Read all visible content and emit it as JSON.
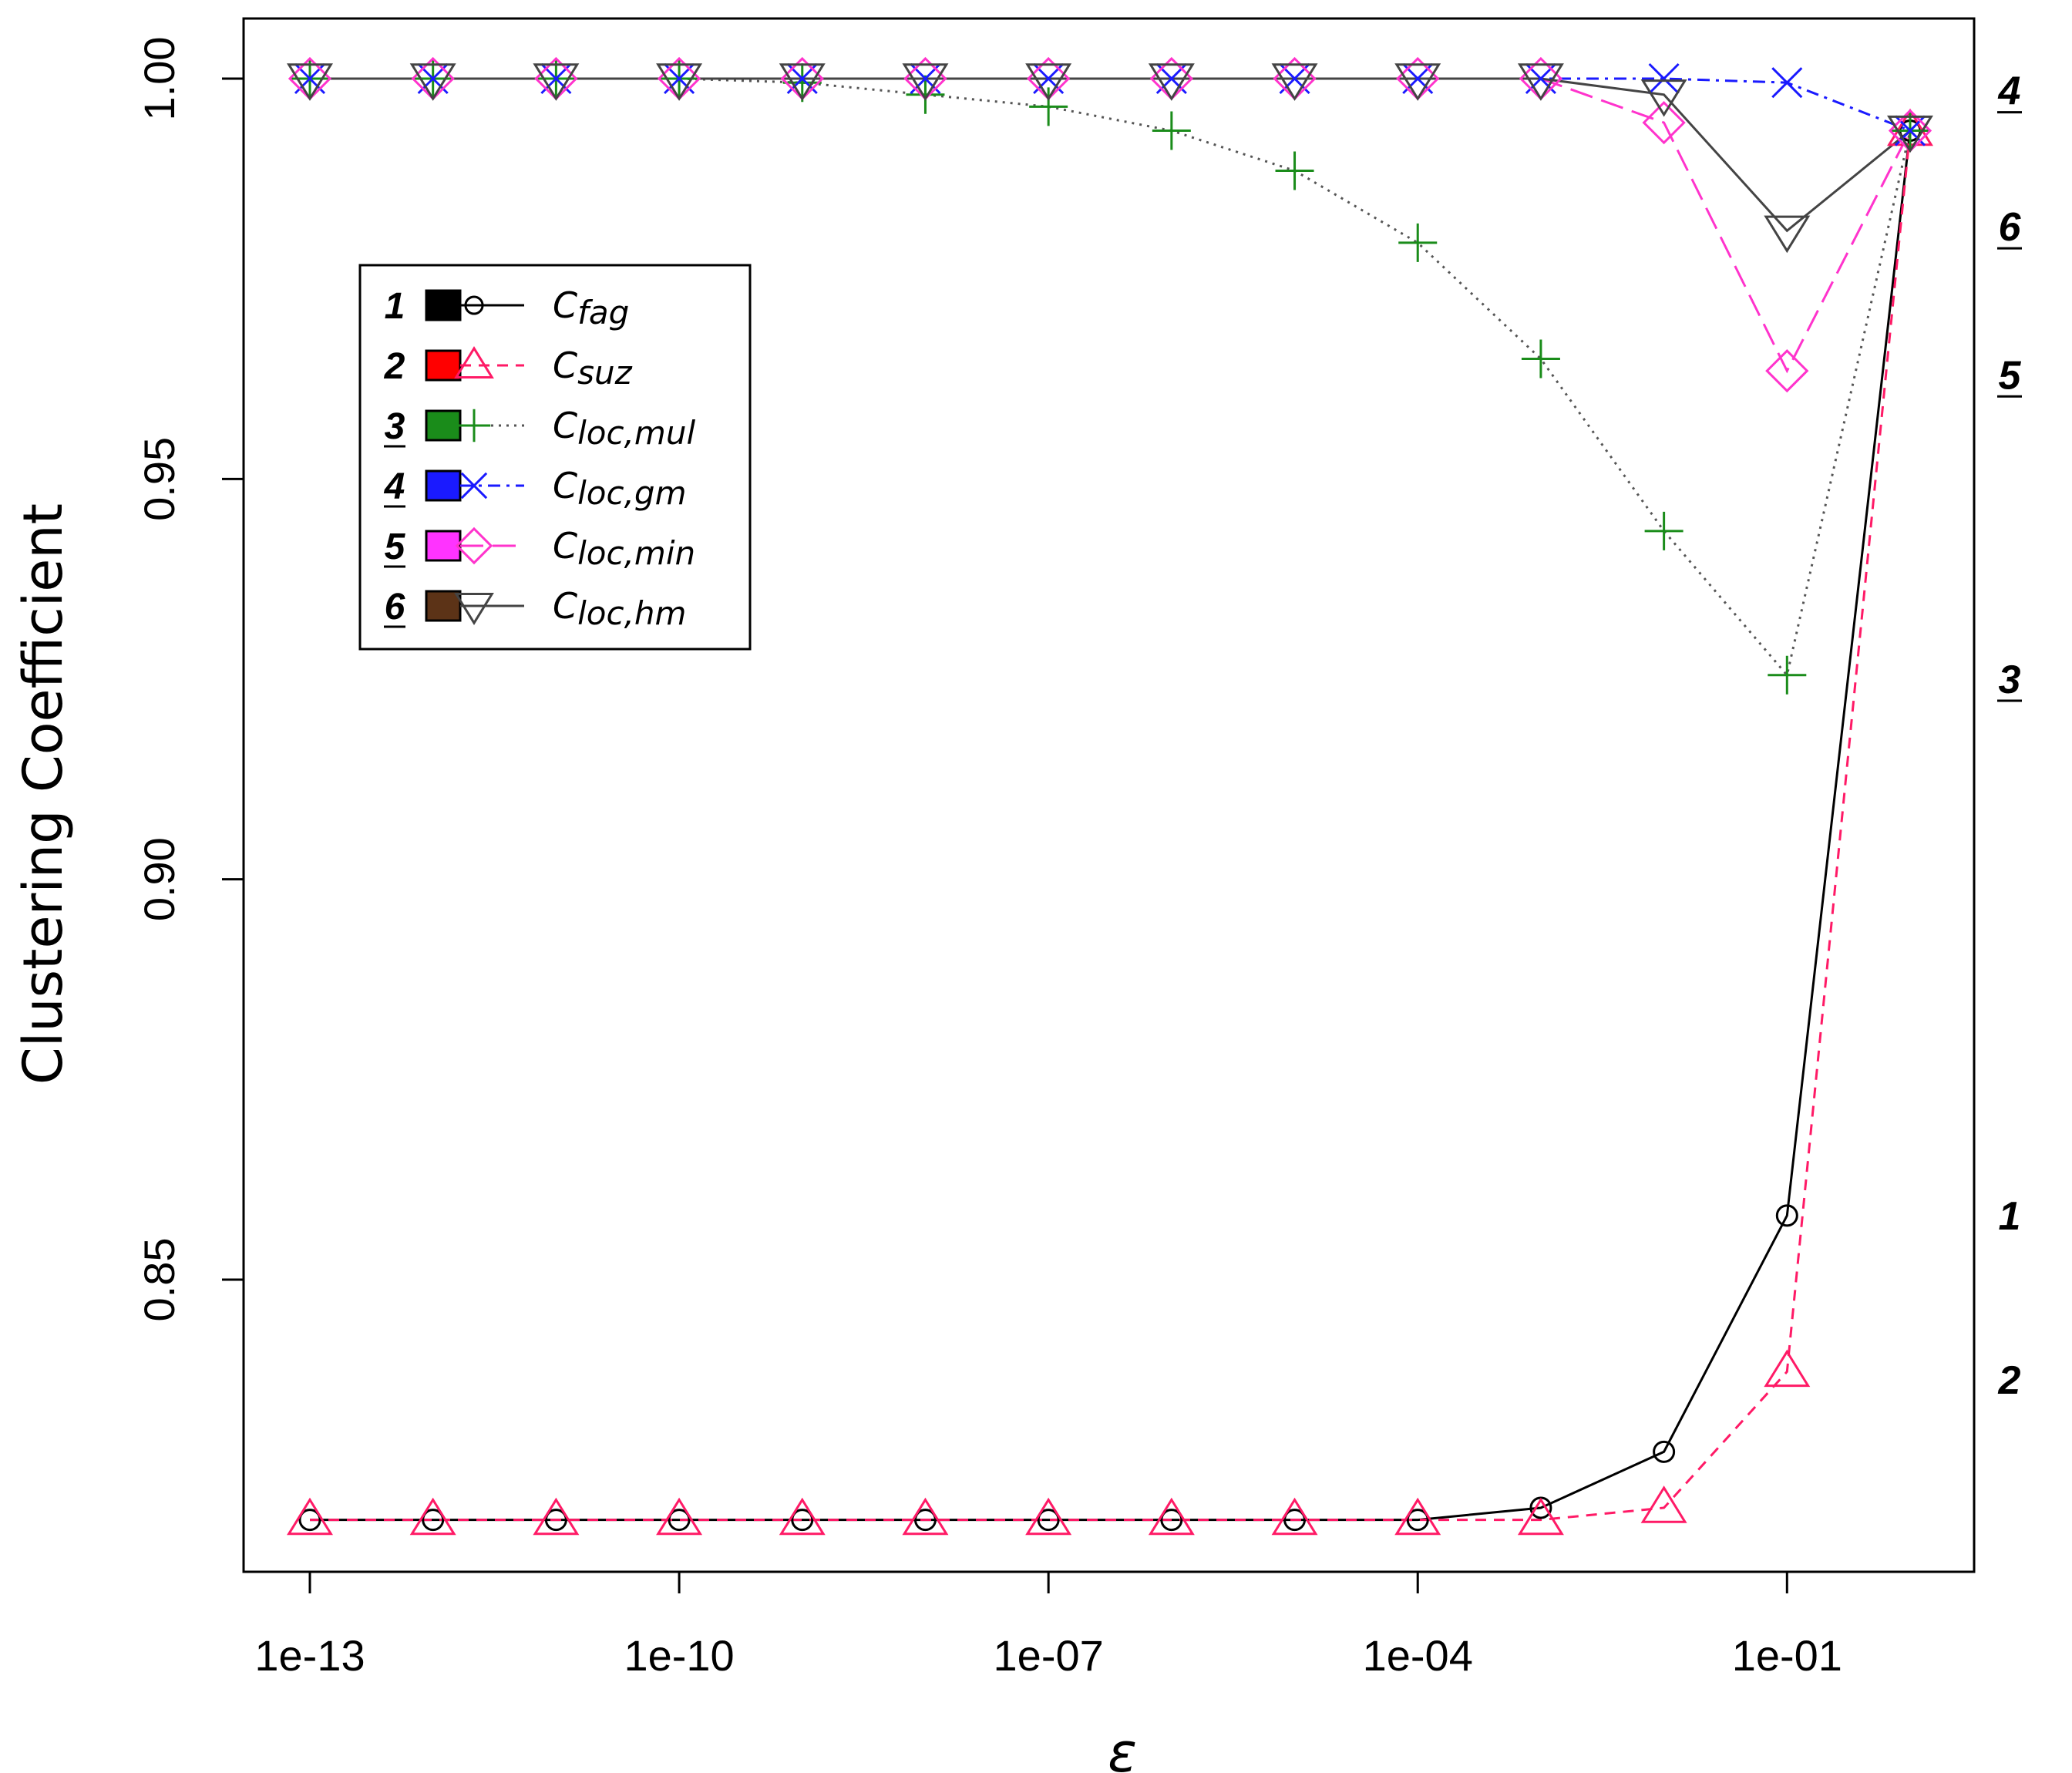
{
  "chart_data": {
    "type": "line",
    "xlabel": "ε",
    "ylabel": "Clustering Coefficient",
    "x_scale": "log10",
    "x": [
      1e-13,
      1e-12,
      1e-11,
      1e-10,
      1e-09,
      1e-08,
      1e-07,
      1e-06,
      1e-05,
      0.0001,
      0.001,
      0.01,
      0.1,
      1
    ],
    "x_ticks": [
      1e-13,
      1e-10,
      1e-07,
      0.0001,
      0.1
    ],
    "x_tick_labels": [
      "1e-13",
      "1e-10",
      "1e-07",
      "1e-04",
      "1e-01"
    ],
    "xlim": [
      1e-13,
      1
    ],
    "ylim": [
      0.81,
      1.0
    ],
    "y_ticks": [
      0.85,
      0.9,
      0.95,
      1.0
    ],
    "y_tick_labels": [
      "0.85",
      "0.90",
      "0.95",
      "1.00"
    ],
    "grid": false,
    "legend_position": "upper-left",
    "series": [
      {
        "id": "1",
        "name": "Cfag",
        "legend_main": "C",
        "legend_sub": "fag",
        "legend_underline": false,
        "color": "#000000",
        "fill": "#000000",
        "dash": "none",
        "marker": "circle",
        "values": [
          0.82,
          0.82,
          0.82,
          0.82,
          0.82,
          0.82,
          0.82,
          0.82,
          0.82,
          0.82,
          0.8215,
          0.8285,
          0.858,
          0.9935
        ]
      },
      {
        "id": "2",
        "name": "Csuz",
        "legend_main": "C",
        "legend_sub": "suz",
        "legend_underline": false,
        "color": "#ff1a66",
        "fill": "#ff0000",
        "dash": "14,10",
        "marker": "triangle",
        "values": [
          0.82,
          0.82,
          0.82,
          0.82,
          0.82,
          0.82,
          0.82,
          0.82,
          0.82,
          0.82,
          0.82,
          0.8215,
          0.8385,
          0.9935
        ]
      },
      {
        "id": "3",
        "name": "Cloc,mul",
        "legend_main": "C",
        "legend_sub": "loc,mul",
        "legend_underline": true,
        "color": "#555555",
        "marker_color": "#1a8c1a",
        "fill": "#1a8c1a",
        "dash": "3,7",
        "marker": "plus",
        "values": [
          1.0,
          1.0,
          1.0,
          1.0,
          0.9995,
          0.998,
          0.9965,
          0.9935,
          0.9885,
          0.9795,
          0.965,
          0.9435,
          0.9255,
          0.9935
        ]
      },
      {
        "id": "4",
        "name": "Cloc,gm",
        "legend_main": "C",
        "legend_sub": "loc,gm",
        "legend_underline": true,
        "color": "#1a1aff",
        "fill": "#1a1aff",
        "dash": "16,8,4,8",
        "marker": "x",
        "values": [
          1.0,
          1.0,
          1.0,
          1.0,
          1.0,
          1.0,
          1.0,
          1.0,
          1.0,
          1.0,
          1.0,
          1.0,
          0.9995,
          0.9935
        ]
      },
      {
        "id": "5",
        "name": "Cloc,min",
        "legend_main": "C",
        "legend_sub": "loc,min",
        "legend_underline": true,
        "color": "#ff33cc",
        "fill": "#ff33ff",
        "dash": "30,12",
        "marker": "diamond",
        "values": [
          1.0,
          1.0,
          1.0,
          1.0,
          1.0,
          1.0,
          1.0,
          1.0,
          1.0,
          1.0,
          1.0,
          0.9945,
          0.9635,
          0.9935
        ]
      },
      {
        "id": "6",
        "name": "Cloc,hm",
        "legend_main": "C",
        "legend_sub": "loc,hm",
        "legend_underline": true,
        "color": "#444444",
        "fill": "#5c3317",
        "dash": "none",
        "marker": "down-triangle",
        "values": [
          1.0,
          1.0,
          1.0,
          1.0,
          1.0,
          1.0,
          1.0,
          1.0,
          1.0,
          1.0,
          1.0,
          0.998,
          0.981,
          0.9935
        ]
      }
    ],
    "right_labels": [
      {
        "text": "4",
        "y": 0.9985,
        "underline": true
      },
      {
        "text": "6",
        "y": 0.9815,
        "underline": true
      },
      {
        "text": "5",
        "y": 0.963,
        "underline": true
      },
      {
        "text": "3",
        "y": 0.925,
        "underline": true
      },
      {
        "text": "1",
        "y": 0.858,
        "underline": false
      },
      {
        "text": "2",
        "y": 0.8375,
        "underline": false
      }
    ]
  }
}
